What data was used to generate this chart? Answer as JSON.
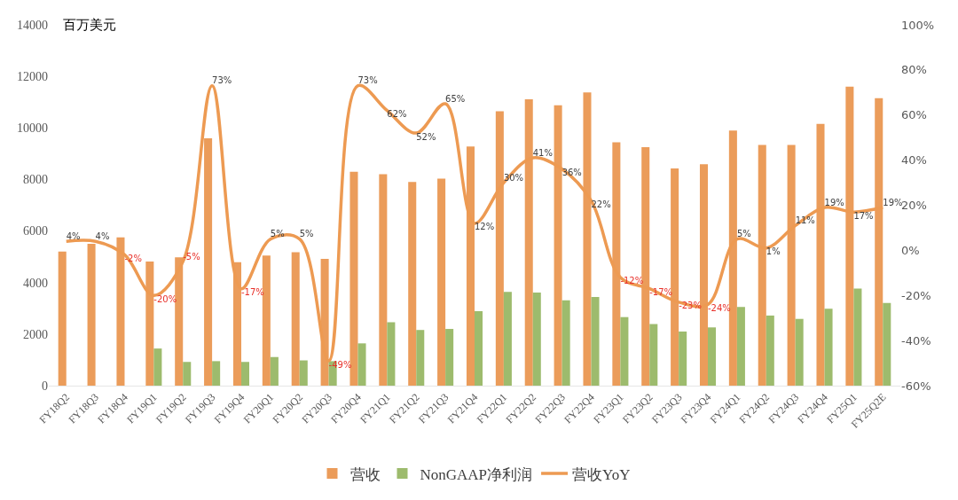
{
  "chart_data": {
    "type": "bar",
    "ylabel": "百万美元",
    "categories": [
      "FY18Q2",
      "FY18Q3",
      "FY18Q4",
      "FY19Q1",
      "FY19Q2",
      "FY19Q3",
      "FY19Q4",
      "FY20Q1",
      "FY20Q2",
      "FY20Q3",
      "FY20Q4",
      "FY21Q1",
      "FY21Q2",
      "FY21Q3",
      "FY21Q4",
      "FY22Q1",
      "FY22Q2",
      "FY22Q3",
      "FY22Q4",
      "FY23Q1",
      "FY23Q2",
      "FY23Q3",
      "FY23Q4",
      "FY24Q1",
      "FY24Q2",
      "FY24Q3",
      "FY24Q4",
      "FY25Q1",
      "FY25Q2E"
    ],
    "series": [
      {
        "name": "营收",
        "color": "#eb9c5a",
        "values": [
          5200,
          5500,
          5750,
          4820,
          4980,
          9600,
          4790,
          5050,
          5180,
          4920,
          8300,
          8200,
          7900,
          8030,
          9280,
          10650,
          11110,
          10880,
          11380,
          9440,
          9250,
          8430,
          8590,
          9900,
          9340,
          9340,
          10160,
          11600,
          11150
        ]
      },
      {
        "name": "NonGAAP净利润",
        "color": "#9dbb6d",
        "values": [
          null,
          null,
          null,
          1440,
          920,
          950,
          920,
          1110,
          980,
          950,
          1640,
          2460,
          2160,
          2200,
          2890,
          3640,
          3610,
          3310,
          3440,
          2660,
          2390,
          2100,
          2260,
          3050,
          2720,
          2590,
          2980,
          3770,
          3210
        ]
      },
      {
        "name": "营收YoY",
        "type": "line",
        "axis": "y2",
        "color": "#ed9a52",
        "values": [
          4,
          4,
          -2,
          -20,
          -5,
          73,
          -17,
          5,
          5,
          -49,
          73,
          62,
          52,
          65,
          12,
          30,
          41,
          36,
          22,
          -12,
          -17,
          -23,
          -24,
          5,
          1,
          11,
          19,
          17,
          19
        ],
        "value_labels": [
          "4%",
          "4%",
          "-2%",
          "-20%",
          "-5%",
          "73%",
          "-17%",
          "5%",
          "5%",
          "-49%",
          "73%",
          "62%",
          "52%",
          "65%",
          "12%",
          "30%",
          "41%",
          "36%",
          "22%",
          "-12%",
          "-17%",
          "-23%",
          "-24%",
          "5%",
          "1%",
          "11%",
          "19%",
          "17%",
          "19%"
        ]
      }
    ],
    "ylim": [
      0,
      14000
    ],
    "yticks": [
      0,
      2000,
      4000,
      6000,
      8000,
      10000,
      12000,
      14000
    ],
    "y2lim": [
      -60,
      100
    ],
    "y2ticks": [
      {
        "value": -60,
        "label": "-60%"
      },
      {
        "value": -40,
        "label": "-40%"
      },
      {
        "value": -20,
        "label": "-20%"
      },
      {
        "value": 0,
        "label": "0%"
      },
      {
        "value": 20,
        "label": "20%"
      },
      {
        "value": 40,
        "label": "40%"
      },
      {
        "value": 60,
        "label": "60%"
      },
      {
        "value": 80,
        "label": "80%"
      },
      {
        "value": 100,
        "label": "100%"
      }
    ],
    "grid": false,
    "legend": "bottom",
    "marker": "none",
    "line_style": "solid"
  }
}
